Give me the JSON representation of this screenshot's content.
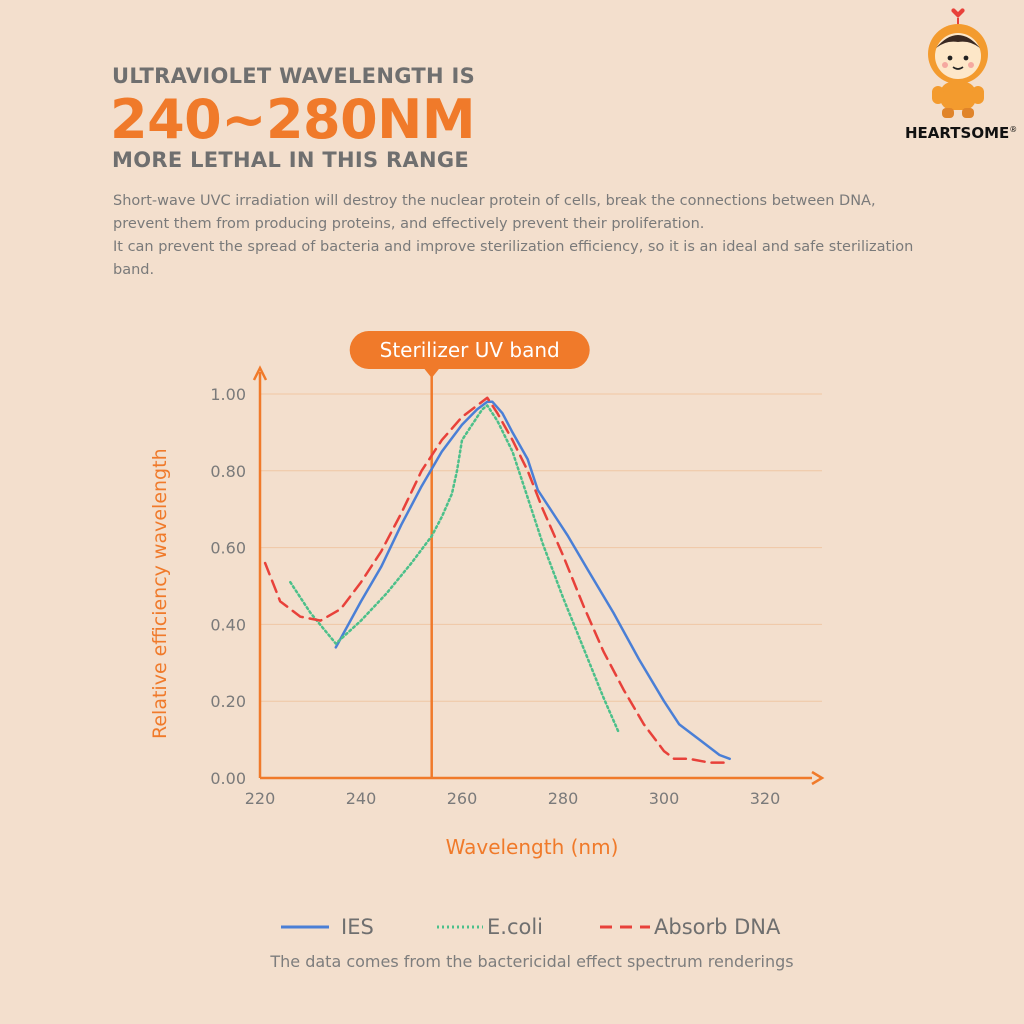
{
  "header": {
    "line1": "ULTRAVIOLET WAVELENGTH IS",
    "line2": "240~280NM",
    "line3": "MORE LETHAL IN THIS RANGE"
  },
  "description": {
    "p1": "Short-wave UVC irradiation will destroy the nuclear protein of cells, break the connections between DNA, prevent them from producing proteins, and effectively prevent their proliferation.",
    "p2": "It can prevent the spread of bacteria and improve sterilization efficiency, so it is an ideal and safe sterilization band."
  },
  "brand": {
    "name": "HEARTSOME",
    "mark": "®",
    "mascot_icon": "astronaut-mascot-icon"
  },
  "colors": {
    "accent": "#f07a2a",
    "ies": "#4a7fd6",
    "ecoli": "#4cc08a",
    "absorb_dna": "#e8413a",
    "gridline": "#f0c7a4",
    "background": "#f3dfcd"
  },
  "chart_data": {
    "type": "line",
    "title": "",
    "xlabel": "Wavelength (nm)",
    "ylabel": "Relative efficiency wavelength",
    "xlim": [
      220,
      330
    ],
    "ylim": [
      0,
      1.05
    ],
    "xticks": [
      220,
      240,
      260,
      280,
      300,
      320
    ],
    "xtick_labels": [
      "220",
      "240",
      "260",
      "280",
      "300",
      "320"
    ],
    "yticks": [
      0,
      0.2,
      0.4,
      0.6,
      0.8,
      1.0
    ],
    "ytick_labels": [
      "0.00",
      "0.20",
      "0.40",
      "0.60",
      "0.80",
      "1.00"
    ],
    "grid": "horizontal",
    "annotation": {
      "label": "Sterilizer UV band",
      "x": 254
    },
    "legend_position": "bottom",
    "series": [
      {
        "name": "IES",
        "style": "solid",
        "points": [
          [
            235,
            0.34
          ],
          [
            240,
            0.46
          ],
          [
            244,
            0.55
          ],
          [
            248,
            0.66
          ],
          [
            252,
            0.76
          ],
          [
            256,
            0.85
          ],
          [
            260,
            0.92
          ],
          [
            263,
            0.96
          ],
          [
            265,
            0.98
          ],
          [
            266,
            0.98
          ],
          [
            268,
            0.95
          ],
          [
            270,
            0.9
          ],
          [
            273,
            0.83
          ],
          [
            275,
            0.75
          ],
          [
            278,
            0.69
          ],
          [
            281,
            0.63
          ],
          [
            285,
            0.54
          ],
          [
            290,
            0.43
          ],
          [
            295,
            0.31
          ],
          [
            300,
            0.2
          ],
          [
            303,
            0.14
          ],
          [
            307,
            0.1
          ],
          [
            311,
            0.06
          ],
          [
            313,
            0.05
          ]
        ]
      },
      {
        "name": "E.coli",
        "style": "dotted",
        "points": [
          [
            226,
            0.51
          ],
          [
            230,
            0.43
          ],
          [
            235,
            0.35
          ],
          [
            240,
            0.41
          ],
          [
            245,
            0.48
          ],
          [
            250,
            0.56
          ],
          [
            254,
            0.63
          ],
          [
            256,
            0.68
          ],
          [
            258,
            0.74
          ],
          [
            259,
            0.8
          ],
          [
            260,
            0.88
          ],
          [
            262,
            0.92
          ],
          [
            264,
            0.96
          ],
          [
            265,
            0.97
          ],
          [
            267,
            0.93
          ],
          [
            270,
            0.85
          ],
          [
            273,
            0.73
          ],
          [
            276,
            0.61
          ],
          [
            280,
            0.47
          ],
          [
            284,
            0.34
          ],
          [
            288,
            0.21
          ],
          [
            291,
            0.12
          ]
        ]
      },
      {
        "name": "Absorb DNA",
        "style": "dashed",
        "points": [
          [
            221,
            0.56
          ],
          [
            224,
            0.46
          ],
          [
            228,
            0.42
          ],
          [
            232,
            0.41
          ],
          [
            236,
            0.44
          ],
          [
            240,
            0.51
          ],
          [
            244,
            0.59
          ],
          [
            248,
            0.69
          ],
          [
            252,
            0.8
          ],
          [
            256,
            0.88
          ],
          [
            260,
            0.94
          ],
          [
            263,
            0.97
          ],
          [
            265,
            0.99
          ],
          [
            267,
            0.95
          ],
          [
            270,
            0.88
          ],
          [
            273,
            0.8
          ],
          [
            276,
            0.7
          ],
          [
            280,
            0.58
          ],
          [
            284,
            0.45
          ],
          [
            288,
            0.33
          ],
          [
            292,
            0.23
          ],
          [
            296,
            0.14
          ],
          [
            300,
            0.07
          ],
          [
            302,
            0.05
          ],
          [
            305,
            0.05
          ],
          [
            309,
            0.04
          ],
          [
            312,
            0.04
          ]
        ]
      }
    ]
  },
  "legend": {
    "ies": "IES",
    "ecoli": "E.coli",
    "absorb_dna": "Absorb DNA"
  },
  "source_note": "The data comes from the bactericidal effect spectrum renderings"
}
